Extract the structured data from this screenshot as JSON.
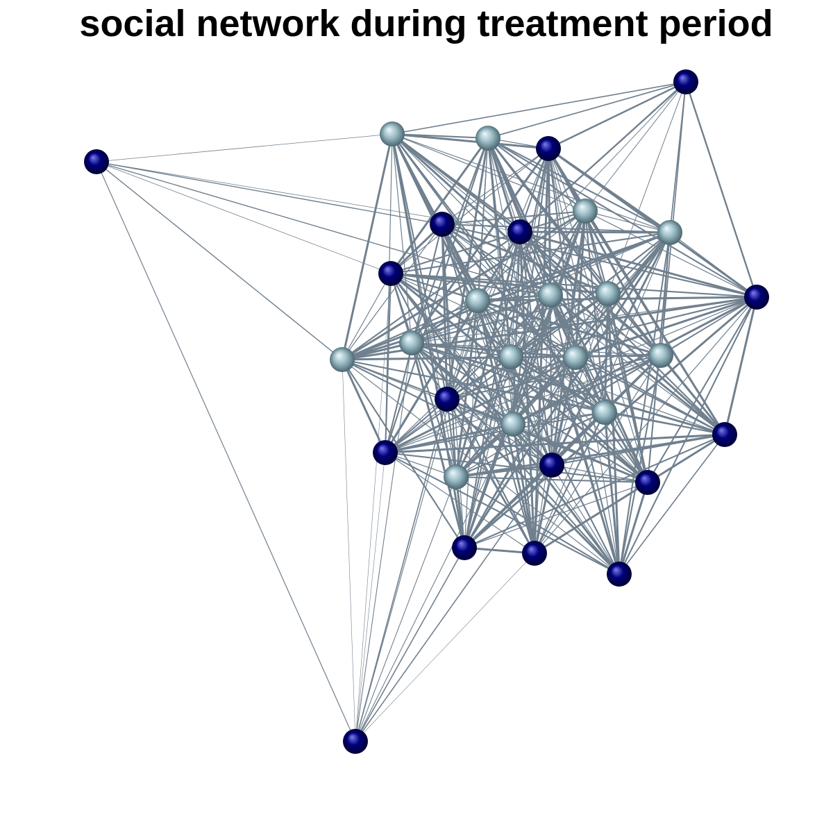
{
  "title": "social network during treatment period",
  "colors": {
    "edge": "#70808f",
    "group_dark": "#00007a",
    "group_light": "#9fbfc9",
    "background": "#ffffff"
  },
  "nodes": [
    {
      "id": "n1",
      "group": "dark"
    },
    {
      "id": "n2",
      "group": "dark"
    },
    {
      "id": "n3",
      "group": "light"
    },
    {
      "id": "n4",
      "group": "light"
    },
    {
      "id": "n5",
      "group": "dark"
    },
    {
      "id": "n6",
      "group": "light"
    },
    {
      "id": "n7",
      "group": "dark"
    },
    {
      "id": "n8",
      "group": "dark"
    },
    {
      "id": "n9",
      "group": "light"
    },
    {
      "id": "n10",
      "group": "dark"
    },
    {
      "id": "n11",
      "group": "dark"
    },
    {
      "id": "n12",
      "group": "light"
    },
    {
      "id": "n13",
      "group": "light"
    },
    {
      "id": "n14",
      "group": "light"
    },
    {
      "id": "n15",
      "group": "light"
    },
    {
      "id": "n16",
      "group": "light"
    },
    {
      "id": "n17",
      "group": "light"
    },
    {
      "id": "n18",
      "group": "light"
    },
    {
      "id": "n19",
      "group": "light"
    },
    {
      "id": "n20",
      "group": "dark"
    },
    {
      "id": "n21",
      "group": "dark"
    },
    {
      "id": "n22",
      "group": "light"
    },
    {
      "id": "n23",
      "group": "dark"
    },
    {
      "id": "n24",
      "group": "light"
    },
    {
      "id": "n25",
      "group": "dark"
    },
    {
      "id": "n26",
      "group": "light"
    },
    {
      "id": "n27",
      "group": "dark"
    },
    {
      "id": "n28",
      "group": "dark"
    },
    {
      "id": "n29",
      "group": "dark"
    },
    {
      "id": "n30",
      "group": "dark"
    }
  ],
  "peripheral_edges": [
    [
      "n2",
      "n3"
    ],
    [
      "n2",
      "n7"
    ],
    [
      "n2",
      "n9"
    ],
    [
      "n2",
      "n13"
    ],
    [
      "n2",
      "n8"
    ],
    [
      "n2",
      "n30"
    ],
    [
      "n30",
      "n21"
    ],
    [
      "n30",
      "n27"
    ],
    [
      "n30",
      "n28"
    ],
    [
      "n30",
      "n29"
    ],
    [
      "n30",
      "n13"
    ],
    [
      "n30",
      "n9"
    ],
    [
      "n30",
      "n20"
    ],
    [
      "n1",
      "n3"
    ],
    [
      "n1",
      "n4"
    ],
    [
      "n1",
      "n6"
    ],
    [
      "n1",
      "n10"
    ],
    [
      "n1",
      "n12"
    ],
    [
      "n1",
      "n26"
    ]
  ]
}
